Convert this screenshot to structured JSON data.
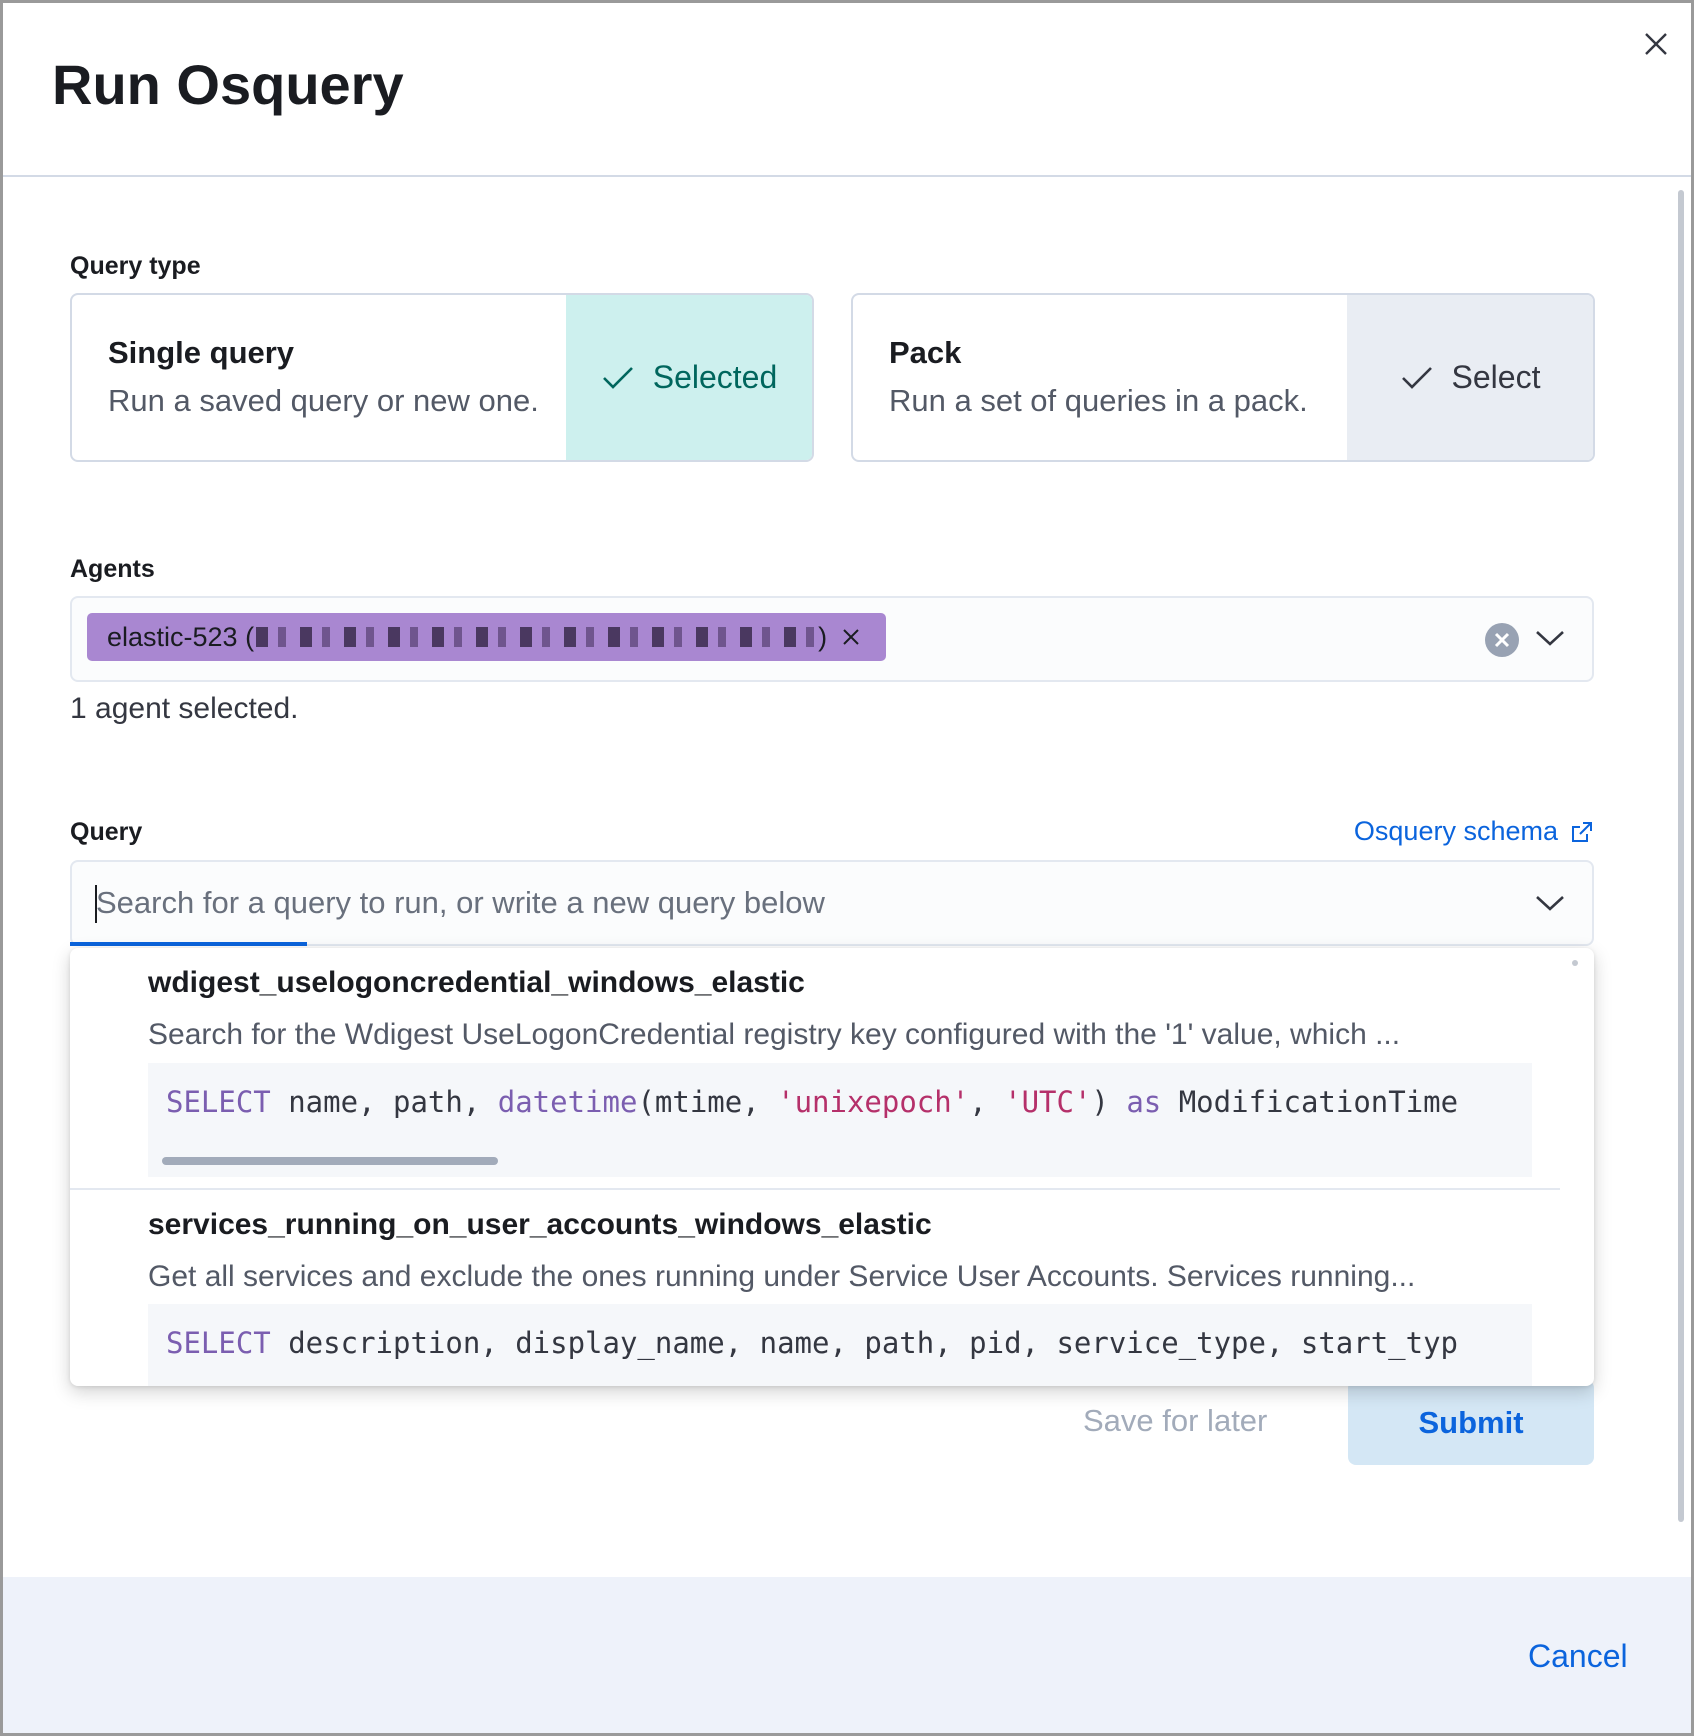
{
  "modal": {
    "title": "Run Osquery"
  },
  "query_type": {
    "label": "Query type",
    "options": [
      {
        "title": "Single query",
        "description": "Run a saved query or new one.",
        "state": "Selected"
      },
      {
        "title": "Pack",
        "description": "Run a set of queries in a pack.",
        "state": "Select"
      }
    ]
  },
  "agents": {
    "label": "Agents",
    "chip_label": "elastic-523 (",
    "chip_suffix": ")",
    "helper": "1 agent selected."
  },
  "query": {
    "label": "Query",
    "schema_link": "Osquery schema",
    "placeholder": "Search for a query to run, or write a new query below",
    "options": [
      {
        "name": "wdigest_uselogoncredential_windows_elastic",
        "description": "Search for the Wdigest UseLogonCredential registry key configured with the '1' value, which ...",
        "code": [
          {
            "t": "kw",
            "v": "SELECT"
          },
          {
            "t": "p",
            "v": " name, path, "
          },
          {
            "t": "kw",
            "v": "datetime"
          },
          {
            "t": "p",
            "v": "(mtime, "
          },
          {
            "t": "str",
            "v": "'unixepoch'"
          },
          {
            "t": "p",
            "v": ", "
          },
          {
            "t": "str",
            "v": "'UTC'"
          },
          {
            "t": "p",
            "v": ") "
          },
          {
            "t": "kw",
            "v": "as"
          },
          {
            "t": "p",
            "v": " ModificationTime"
          }
        ]
      },
      {
        "name": "services_running_on_user_accounts_windows_elastic",
        "description": "Get all services and exclude the ones running under Service User Accounts. Services running...",
        "code": [
          {
            "t": "kw",
            "v": "SELECT"
          },
          {
            "t": "p",
            "v": " description, display_name, name, path, pid, service_type, start_typ"
          }
        ]
      }
    ]
  },
  "actions": {
    "save": "Save for later",
    "submit": "Submit",
    "cancel": "Cancel"
  },
  "colors": {
    "selected_bg": "#cdf0ee",
    "selected_text": "#00665d",
    "chip": "#a987d1",
    "link": "#0b64dd",
    "submit_bg": "#d4e7f5"
  }
}
